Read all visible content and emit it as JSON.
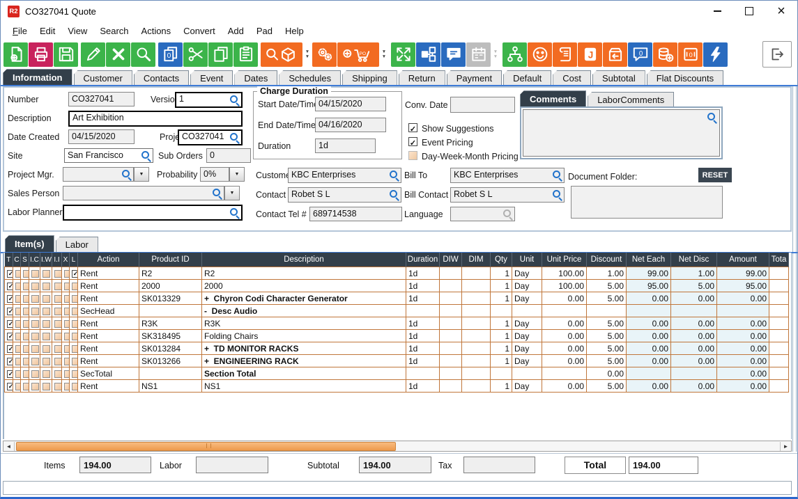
{
  "window": {
    "title": "CO327041 Quote",
    "logo": "R2"
  },
  "menu": [
    "File",
    "Edit",
    "View",
    "Search",
    "Actions",
    "Convert",
    "Add",
    "Pad",
    "Help"
  ],
  "colors": {
    "green": "#3cb44a",
    "orange": "#f26b21",
    "blue": "#2a6bbf",
    "crimson": "#c8235d",
    "gray": "#bdbdbd",
    "white": "#ffffff",
    "active_tab": "#333f4a",
    "grid_line": "#c0763a",
    "scroll_thumb": "#f2a763",
    "highlight_red": "#a31f1f",
    "highlight_purple": "#5a4876",
    "highlight_navy": "#3c4e9e",
    "accent_line": "#3e7bd6"
  },
  "toolbar": {
    "groups": [
      [
        {
          "icon": "new-document",
          "color": "green"
        },
        {
          "icon": "print",
          "color": "crimson"
        },
        {
          "icon": "save",
          "color": "green"
        }
      ],
      [
        {
          "icon": "edit",
          "color": "green"
        },
        {
          "icon": "delete",
          "color": "green"
        },
        {
          "icon": "search",
          "color": "green"
        }
      ],
      [
        {
          "icon": "duplicate-zero",
          "color": "blue"
        },
        {
          "icon": "cut",
          "color": "green"
        },
        {
          "icon": "copy",
          "color": "green"
        },
        {
          "icon": "paste",
          "color": "green"
        }
      ],
      [
        {
          "icon": "find-item",
          "color": "orange",
          "wide": true
        },
        {
          "icon": "dropdown-arrows",
          "color": "white"
        },
        {
          "icon": "gears",
          "color": "orange"
        },
        {
          "icon": "add-po-cart",
          "color": "orange",
          "wide": true
        },
        {
          "icon": "dropdown-arrows",
          "color": "white"
        }
      ],
      [
        {
          "icon": "expand",
          "color": "green"
        },
        {
          "icon": "flowchart",
          "color": "blue"
        },
        {
          "icon": "comment",
          "color": "blue"
        },
        {
          "icon": "calendar",
          "color": "gray"
        },
        {
          "icon": "dropdown-arrows",
          "color": "gray"
        }
      ],
      [
        {
          "icon": "org-tree",
          "color": "green"
        },
        {
          "icon": "smiley",
          "color": "orange"
        },
        {
          "icon": "script",
          "color": "orange"
        },
        {
          "icon": "journal",
          "color": "orange"
        },
        {
          "icon": "box-return",
          "color": "orange"
        },
        {
          "icon": "speech-zero",
          "color": "blue"
        },
        {
          "icon": "coins-add",
          "color": "orange"
        },
        {
          "icon": "safe",
          "color": "orange"
        },
        {
          "icon": "bolt",
          "color": "blue"
        }
      ]
    ]
  },
  "tabs": {
    "items": [
      "Information",
      "Customer",
      "Contacts",
      "Event",
      "Dates",
      "Schedules",
      "Shipping",
      "Return",
      "Payment",
      "Default",
      "Cost",
      "Subtotal",
      "Flat Discounts"
    ],
    "active": 0
  },
  "form": {
    "number": {
      "label": "Number",
      "value": "CO327041"
    },
    "version": {
      "label": "Version",
      "value": "1"
    },
    "description": {
      "label": "Description",
      "value": "Art Exhibition"
    },
    "date_created": {
      "label": "Date Created",
      "value": "04/15/2020"
    },
    "project": {
      "label": "Project",
      "value": "CO327041"
    },
    "site": {
      "label": "Site",
      "value": "San Francisco"
    },
    "sub_orders": {
      "label": "Sub Orders",
      "value": "0"
    },
    "project_mgr": {
      "label": "Project Mgr.",
      "value": ""
    },
    "probability": {
      "label": "Probability",
      "value": "0%"
    },
    "sales_person": {
      "label": "Sales Person",
      "value": ""
    },
    "labor_planner": {
      "label": "Labor Planner",
      "value": ""
    },
    "charge_duration": {
      "title": "Charge Duration",
      "start": {
        "label": "Start Date/Time",
        "value": "04/15/2020"
      },
      "end": {
        "label": "End Date/Time",
        "value": "04/16/2020"
      },
      "duration": {
        "label": "Duration",
        "value": "1d"
      }
    },
    "conv_date": {
      "label": "Conv. Date",
      "value": ""
    },
    "checkboxes": {
      "show_suggestions": {
        "label": "Show Suggestions",
        "checked": true
      },
      "event_pricing": {
        "label": "Event Pricing",
        "checked": true
      },
      "dwm_pricing": {
        "label": "Day-Week-Month Pricing",
        "checked": false
      }
    },
    "customer": {
      "label": "Customer",
      "value": "KBC Enterprises"
    },
    "bill_to": {
      "label": "Bill To",
      "value": "KBC Enterprises"
    },
    "contact": {
      "label": "Contact",
      "value": "Robet S L"
    },
    "bill_contact": {
      "label": "Bill Contact",
      "value": "Robet S L"
    },
    "contact_tel": {
      "label": "Contact Tel #",
      "value": "689714538"
    },
    "language": {
      "label": "Language",
      "value": ""
    }
  },
  "comments": {
    "tabs": [
      "Comments",
      "LaborComments"
    ],
    "active": 0,
    "value": ""
  },
  "document_folder": {
    "label": "Document Folder:",
    "reset_label": "RESET",
    "value": ""
  },
  "items_tabs": {
    "items": [
      "Item(s)",
      "Labor"
    ],
    "active": 0
  },
  "table": {
    "columns": [
      "T",
      "C",
      "S",
      "I.C",
      "I.W",
      "I.I",
      "X",
      "L",
      "Action",
      "Product ID",
      "Description",
      "Duration",
      "DIW",
      "DIM",
      "Qty",
      "Unit",
      "Unit Price",
      "Discount",
      "Net Each",
      "Net Disc",
      "Amount",
      "Tota"
    ],
    "rows": [
      {
        "checks": [
          "T",
          "L"
        ],
        "action": "Rent",
        "product": "R2",
        "desc": "R2",
        "bold": false,
        "duration": "1d",
        "diw": "",
        "dim": "",
        "qty": "1",
        "unit": "Day",
        "unit_price": "100.00",
        "discount": "1.00",
        "net_each": "99.00",
        "net_disc": "1.00",
        "amount": "99.00",
        "highlight": ""
      },
      {
        "checks": [
          "T"
        ],
        "action": "Rent",
        "product": "2000",
        "desc": "2000",
        "bold": false,
        "duration": "1d",
        "diw": "",
        "dim": "",
        "qty": "1",
        "unit": "Day",
        "unit_price": "100.00",
        "discount": "5.00",
        "net_each": "95.00",
        "net_disc": "5.00",
        "amount": "95.00",
        "highlight": ""
      },
      {
        "checks": [
          "T"
        ],
        "action": "Rent",
        "product": "SK013329",
        "desc": "+  Chyron Codi Character Generator",
        "bold": true,
        "duration": "1d",
        "diw": "",
        "dim": "",
        "qty": "1",
        "unit": "Day",
        "unit_price": "0.00",
        "discount": "5.00",
        "net_each": "0.00",
        "net_disc": "0.00",
        "amount": "0.00",
        "highlight": ""
      },
      {
        "checks": [
          "T"
        ],
        "action": "SecHead",
        "product": "",
        "desc": "-  Desc Audio",
        "bold": true,
        "duration": "",
        "diw": "",
        "dim": "",
        "qty": "",
        "unit": "",
        "unit_price": "",
        "discount": "",
        "net_each": "",
        "net_disc": "",
        "amount": "",
        "highlight": "red"
      },
      {
        "checks": [
          "T"
        ],
        "action": "Rent",
        "product": "R3K",
        "desc": "R3K",
        "bold": false,
        "duration": "1d",
        "diw": "",
        "dim": "",
        "qty": "1",
        "unit": "Day",
        "unit_price": "0.00",
        "discount": "5.00",
        "net_each": "0.00",
        "net_disc": "0.00",
        "amount": "0.00",
        "highlight": ""
      },
      {
        "checks": [
          "T"
        ],
        "action": "Rent",
        "product": "SK318495",
        "desc": "Folding Chairs",
        "bold": false,
        "duration": "1d",
        "diw": "",
        "dim": "",
        "qty": "1",
        "unit": "Day",
        "unit_price": "0.00",
        "discount": "5.00",
        "net_each": "0.00",
        "net_disc": "0.00",
        "amount": "0.00",
        "highlight": "navy"
      },
      {
        "checks": [
          "T"
        ],
        "action": "Rent",
        "product": "SK013284",
        "desc": "+  TD MONITOR RACKS",
        "bold": true,
        "duration": "1d",
        "diw": "",
        "dim": "",
        "qty": "1",
        "unit": "Day",
        "unit_price": "0.00",
        "discount": "5.00",
        "net_each": "0.00",
        "net_disc": "0.00",
        "amount": "0.00",
        "highlight": "ptop"
      },
      {
        "checks": [
          "T"
        ],
        "action": "Rent",
        "product": "SK013266",
        "desc": "+  ENGINEERING RACK",
        "bold": true,
        "duration": "1d",
        "diw": "",
        "dim": "",
        "qty": "1",
        "unit": "Day",
        "unit_price": "0.00",
        "discount": "5.00",
        "net_each": "0.00",
        "net_disc": "0.00",
        "amount": "0.00",
        "highlight": "pbot"
      },
      {
        "checks": [
          "T"
        ],
        "action": "SecTotal",
        "product": "",
        "desc": "Section Total",
        "bold": true,
        "duration": "",
        "diw": "",
        "dim": "",
        "qty": "",
        "unit": "",
        "unit_price": "",
        "discount": "0.00",
        "net_each": "",
        "net_disc": "",
        "amount": "0.00",
        "highlight": ""
      },
      {
        "checks": [
          "T"
        ],
        "action": "Rent",
        "product": "NS1",
        "desc": "NS1",
        "bold": false,
        "duration": "1d",
        "diw": "",
        "dim": "",
        "qty": "1",
        "unit": "Day",
        "unit_price": "0.00",
        "discount": "5.00",
        "net_each": "0.00",
        "net_disc": "0.00",
        "amount": "0.00",
        "highlight": ""
      }
    ]
  },
  "totals": {
    "items": {
      "label": "Items",
      "value": "194.00"
    },
    "labor": {
      "label": "Labor",
      "value": ""
    },
    "subtotal": {
      "label": "Subtotal",
      "value": "194.00"
    },
    "tax": {
      "label": "Tax",
      "value": ""
    },
    "total": {
      "label": "Total",
      "value": "194.00"
    }
  }
}
